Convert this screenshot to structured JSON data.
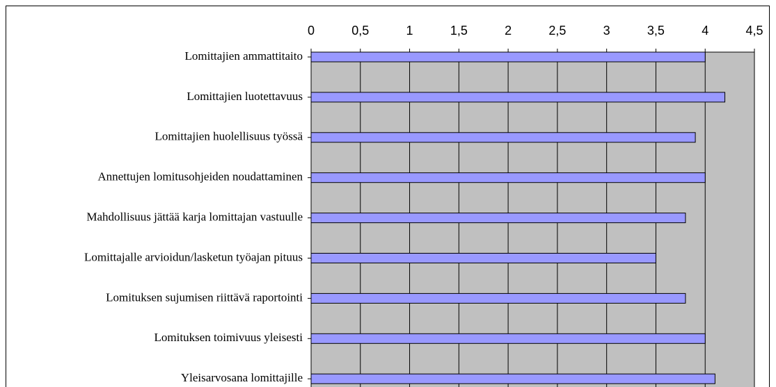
{
  "chart_data": {
    "type": "bar",
    "orientation": "horizontal",
    "categories": [
      "Lomittajien ammattitaito",
      "Lomittajien luotettavuus",
      "Lomittajien huolellisuus työssä",
      "Annettujen lomitusohjeiden noudattaminen",
      "Mahdollisuus jättää karja lomittajan vastuulle",
      "Lomittajalle arvioidun/lasketun työajan pituus",
      "Lomituksen sujumisen riittävä raportointi",
      "Lomituksen toimivuus yleisesti",
      "Yleisarvosana lomittajille"
    ],
    "values": [
      4.0,
      4.2,
      3.9,
      4.0,
      3.8,
      3.5,
      3.8,
      4.0,
      4.1
    ],
    "color": "#9999ff",
    "xlim": [
      0,
      4.5
    ],
    "xticks": [
      0,
      {
        "value": 0.5,
        "label": "0,5"
      },
      1,
      {
        "value": 1.5,
        "label": "1,5"
      },
      2,
      {
        "value": 2.5,
        "label": "2,5"
      },
      3,
      {
        "value": 3.5,
        "label": "3,5"
      },
      4,
      {
        "value": 4.5,
        "label": "4,5"
      }
    ],
    "grid": true
  }
}
